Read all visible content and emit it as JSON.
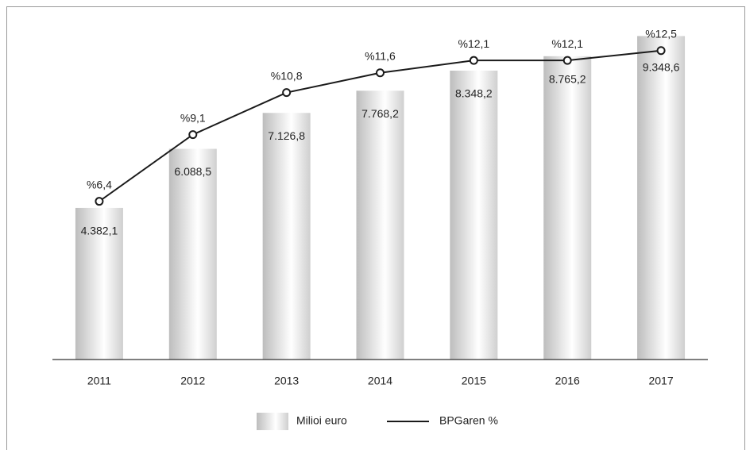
{
  "chart_data": {
    "type": "bar_line",
    "categories": [
      "2011",
      "2012",
      "2013",
      "2014",
      "2015",
      "2016",
      "2017"
    ],
    "series": [
      {
        "name": "Milioi euro",
        "type": "bar",
        "color": "#c8c8c8",
        "values": [
          4382.1,
          6088.5,
          7126.8,
          7768.2,
          8348.2,
          8765.2,
          9348.6
        ],
        "value_labels": [
          "4.382,1",
          "6.088,5",
          "7.126,8",
          "7.768,2",
          "8.348,2",
          "8.765,2",
          "9.348,6"
        ]
      },
      {
        "name": "BPGaren %",
        "type": "line",
        "axis": "y2",
        "color": "#1a1a1a",
        "values": [
          6.4,
          9.1,
          10.8,
          11.6,
          12.1,
          12.1,
          12.5
        ],
        "value_labels": [
          "%6,4",
          "%9,1",
          "%10,8",
          "%11,6",
          "%12,1",
          "%12,1",
          "%12,5"
        ]
      }
    ],
    "ylim": [
      0,
      10000
    ],
    "y2lim": [
      0,
      14
    ],
    "legend": "bottom"
  }
}
